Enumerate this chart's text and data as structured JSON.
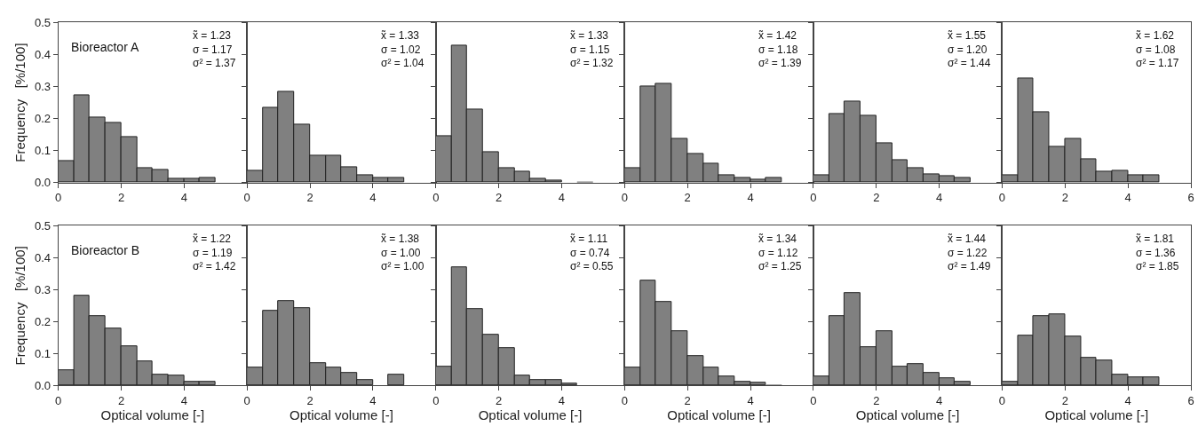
{
  "chart_data": [
    {
      "type": "histogram",
      "ylabel": "Frequency   [%/100]",
      "annotations": [
        "Bioreactor A",
        "x̃ = 1.23\nσ = 1.17\nσ² = 1.37"
      ],
      "color": "#808080",
      "bins": [
        0,
        0.5,
        1,
        1.5,
        2,
        2.5,
        3,
        3.5,
        4,
        4.5,
        5
      ],
      "values": [
        0.067,
        0.272,
        0.204,
        0.187,
        0.143,
        0.046,
        0.04,
        0.013,
        0.013,
        0.016
      ],
      "xlim": [
        0,
        6
      ],
      "xticks": [
        0,
        2,
        4
      ],
      "ylim": [
        0,
        0.5
      ],
      "yticks": [
        {
          "value": 0,
          "label": "0.0"
        },
        0.1,
        0.2,
        0.3,
        0.4,
        0.5
      ]
    },
    {
      "type": "histogram",
      "annotations": [
        "x̃ = 1.33\nσ = 1.02\nσ² = 1.04"
      ],
      "color": "#808080",
      "bins": [
        0,
        0.5,
        1,
        1.5,
        2,
        2.5,
        3,
        3.5,
        4,
        4.5,
        5
      ],
      "values": [
        0.038,
        0.233,
        0.283,
        0.18,
        0.083,
        0.083,
        0.048,
        0.022,
        0.016,
        0.016
      ],
      "xlim": [
        0,
        6
      ],
      "xticks": [
        0,
        2,
        4
      ],
      "ylim": [
        0,
        0.5
      ],
      "yticks": [
        0,
        0.1,
        0.2,
        0.3,
        0.4,
        0.5
      ],
      "tick_labels": "x"
    },
    {
      "type": "histogram",
      "annotations": [
        "x̃ = 1.33\nσ = 1.15\nσ² = 1.32"
      ],
      "color": "#808080",
      "bins": [
        0,
        0.5,
        1,
        1.5,
        2,
        2.5,
        3,
        3.5,
        4,
        4.5,
        5
      ],
      "values": [
        0.145,
        0.427,
        0.229,
        0.096,
        0.046,
        0.035,
        0.013,
        0.007,
        0,
        0.004
      ],
      "xlim": [
        0,
        6
      ],
      "xticks": [
        0,
        2,
        4
      ],
      "ylim": [
        0,
        0.5
      ],
      "yticks": [
        0,
        0.1,
        0.2,
        0.3,
        0.4,
        0.5
      ],
      "tick_labels": "x"
    },
    {
      "type": "histogram",
      "annotations": [
        "x̃ = 1.42\nσ = 1.18\nσ² = 1.39"
      ],
      "color": "#808080",
      "bins": [
        0,
        0.5,
        1,
        1.5,
        2,
        2.5,
        3,
        3.5,
        4,
        4.5,
        5
      ],
      "values": [
        0.044,
        0.299,
        0.31,
        0.138,
        0.089,
        0.059,
        0.023,
        0.014,
        0.008,
        0.014
      ],
      "xlim": [
        0,
        6
      ],
      "xticks": [
        0,
        2,
        4
      ],
      "ylim": [
        0,
        0.5
      ],
      "yticks": [
        0,
        0.1,
        0.2,
        0.3,
        0.4,
        0.5
      ],
      "tick_labels": "x"
    },
    {
      "type": "histogram",
      "annotations": [
        "x̃ = 1.55\nσ = 1.20\nσ² = 1.44"
      ],
      "color": "#808080",
      "bins": [
        0,
        0.5,
        1,
        1.5,
        2,
        2.5,
        3,
        3.5,
        4,
        4.5,
        5
      ],
      "values": [
        0.023,
        0.213,
        0.253,
        0.21,
        0.123,
        0.07,
        0.046,
        0.027,
        0.021,
        0.016
      ],
      "xlim": [
        0,
        6
      ],
      "xticks": [
        0,
        2,
        4
      ],
      "ylim": [
        0,
        0.5
      ],
      "yticks": [
        0,
        0.1,
        0.2,
        0.3,
        0.4,
        0.5
      ],
      "tick_labels": "x"
    },
    {
      "type": "histogram",
      "annotations": [
        "x̃ = 1.62\nσ = 1.08\nσ² = 1.17"
      ],
      "color": "#808080",
      "bins": [
        0,
        0.5,
        1,
        1.5,
        2,
        2.5,
        3,
        3.5,
        4,
        4.5,
        5
      ],
      "values": [
        0.023,
        0.325,
        0.221,
        0.111,
        0.138,
        0.072,
        0.034,
        0.038,
        0.022,
        0.022
      ],
      "xlim": [
        0,
        6
      ],
      "xticks": [
        0,
        2,
        4,
        6
      ],
      "ylim": [
        0,
        0.5
      ],
      "yticks": [
        0,
        0.1,
        0.2,
        0.3,
        0.4,
        0.5
      ],
      "tick_labels": "x"
    },
    {
      "type": "histogram",
      "xlabel": "Optical volume [-]",
      "ylabel": "Frequency   [%/100]",
      "annotations": [
        "Bioreactor B",
        "x̃ = 1.22\nσ = 1.19\nσ² = 1.42"
      ],
      "color": "#808080",
      "bins": [
        0,
        0.5,
        1,
        1.5,
        2,
        2.5,
        3,
        3.5,
        4,
        4.5,
        5
      ],
      "values": [
        0.048,
        0.28,
        0.218,
        0.177,
        0.124,
        0.077,
        0.034,
        0.032,
        0.012,
        0.012
      ],
      "xlim": [
        0,
        6
      ],
      "xticks": [
        0,
        2,
        4
      ],
      "ylim": [
        0,
        0.5
      ],
      "yticks": [
        {
          "value": 0,
          "label": "0.0"
        },
        0.1,
        0.2,
        0.3,
        0.4,
        0.5
      ]
    },
    {
      "type": "histogram",
      "xlabel": "Optical volume [-]",
      "annotations": [
        "x̃ = 1.38\nσ = 1.00\nσ² = 1.00"
      ],
      "color": "#808080",
      "bins": [
        0,
        0.5,
        1,
        1.5,
        2,
        2.5,
        3,
        3.5,
        4,
        4.5,
        5
      ],
      "values": [
        0.057,
        0.235,
        0.264,
        0.241,
        0.071,
        0.057,
        0.04,
        0.018,
        0,
        0.033
      ],
      "xlim": [
        0,
        6
      ],
      "xticks": [
        0,
        2,
        4
      ],
      "ylim": [
        0,
        0.5
      ],
      "yticks": [
        0,
        0.1,
        0.2,
        0.3,
        0.4,
        0.5
      ],
      "tick_labels": "x"
    },
    {
      "type": "histogram",
      "xlabel": "Optical volume [-]",
      "annotations": [
        "x̃ = 1.11\nσ = 0.74\nσ² = 0.55"
      ],
      "color": "#808080",
      "bins": [
        0,
        0.5,
        1,
        1.5,
        2,
        2.5,
        3,
        3.5,
        4,
        4.5,
        5
      ],
      "values": [
        0.058,
        0.369,
        0.24,
        0.16,
        0.116,
        0.031,
        0.018,
        0.018,
        0.007,
        0
      ],
      "xlim": [
        0,
        6
      ],
      "xticks": [
        0,
        2,
        4
      ],
      "ylim": [
        0,
        0.5
      ],
      "yticks": [
        0,
        0.1,
        0.2,
        0.3,
        0.4,
        0.5
      ],
      "tick_labels": "x"
    },
    {
      "type": "histogram",
      "xlabel": "Optical volume [-]",
      "annotations": [
        "x̃ = 1.34\nσ = 1.12\nσ² = 1.25"
      ],
      "color": "#808080",
      "bins": [
        0,
        0.5,
        1,
        1.5,
        2,
        2.5,
        3,
        3.5,
        4,
        4.5,
        5
      ],
      "values": [
        0.056,
        0.328,
        0.261,
        0.169,
        0.092,
        0.056,
        0.029,
        0.012,
        0.009,
        0.002
      ],
      "xlim": [
        0,
        6
      ],
      "xticks": [
        0,
        2,
        4
      ],
      "ylim": [
        0,
        0.5
      ],
      "yticks": [
        0,
        0.1,
        0.2,
        0.3,
        0.4,
        0.5
      ],
      "tick_labels": "x"
    },
    {
      "type": "histogram",
      "xlabel": "Optical volume [-]",
      "annotations": [
        "x̃ = 1.44\nσ = 1.22\nσ² = 1.49"
      ],
      "color": "#808080",
      "bins": [
        0,
        0.5,
        1,
        1.5,
        2,
        2.5,
        3,
        3.5,
        4,
        4.5,
        5
      ],
      "values": [
        0.029,
        0.216,
        0.289,
        0.12,
        0.169,
        0.058,
        0.067,
        0.04,
        0.022,
        0.011
      ],
      "xlim": [
        0,
        6
      ],
      "xticks": [
        0,
        2,
        4
      ],
      "ylim": [
        0,
        0.5
      ],
      "yticks": [
        0,
        0.1,
        0.2,
        0.3,
        0.4,
        0.5
      ],
      "tick_labels": "x"
    },
    {
      "type": "histogram",
      "xlabel": "Optical volume [-]",
      "annotations": [
        "x̃ = 1.81\nσ = 1.36\nσ² = 1.85"
      ],
      "color": "#808080",
      "bins": [
        0,
        0.5,
        1,
        1.5,
        2,
        2.5,
        3,
        3.5,
        4,
        4.5,
        5
      ],
      "values": [
        0.011,
        0.156,
        0.218,
        0.222,
        0.153,
        0.086,
        0.079,
        0.034,
        0.026,
        0.026
      ],
      "xlim": [
        0,
        6
      ],
      "xticks": [
        0,
        2,
        4,
        6
      ],
      "ylim": [
        0,
        0.5
      ],
      "yticks": [
        0,
        0.1,
        0.2,
        0.3,
        0.4,
        0.5
      ],
      "tick_labels": "x"
    }
  ]
}
